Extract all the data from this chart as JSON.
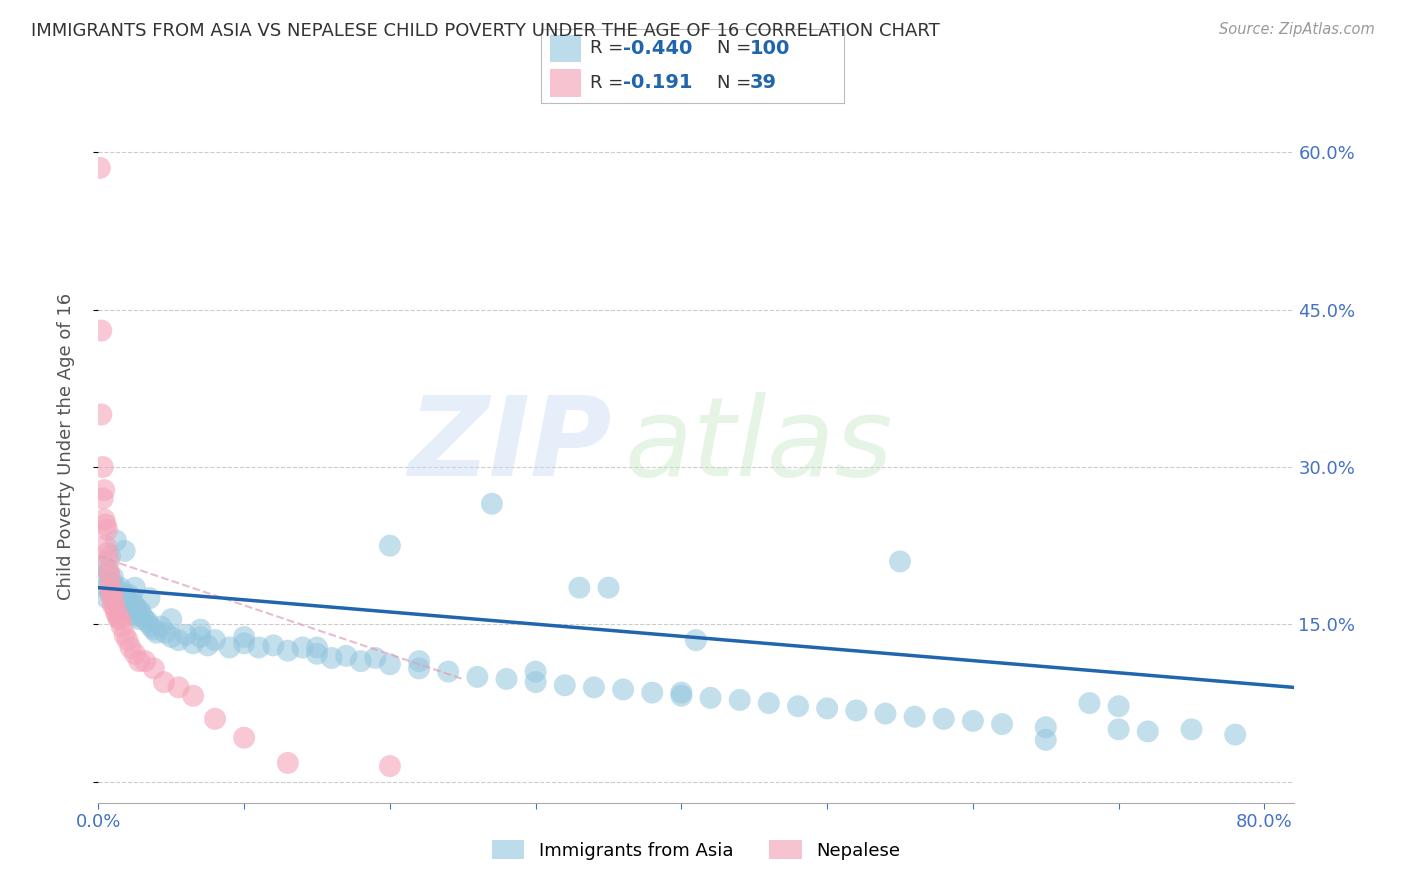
{
  "title": "IMMIGRANTS FROM ASIA VS NEPALESE CHILD POVERTY UNDER THE AGE OF 16 CORRELATION CHART",
  "source": "Source: ZipAtlas.com",
  "ylabel": "Child Poverty Under the Age of 16",
  "xlim": [
    0.0,
    0.82
  ],
  "ylim": [
    -0.02,
    0.66
  ],
  "legend_label1": "Immigrants from Asia",
  "legend_label2": "Nepalese",
  "blue_color": "#92c5de",
  "pink_color": "#f4a4b8",
  "blue_line_color": "#2166ac",
  "pink_line_color": "#d4a0b0",
  "background_color": "#ffffff",
  "grid_color": "#cccccc",
  "title_color": "#333333",
  "axis_label_color": "#555555",
  "right_tick_color": "#4472c4",
  "bottom_tick_color": "#4472c4",
  "watermark_zip": "ZIP",
  "watermark_atlas": "atlas",
  "blue_scatter_x": [
    0.002,
    0.004,
    0.005,
    0.006,
    0.007,
    0.008,
    0.009,
    0.01,
    0.011,
    0.012,
    0.013,
    0.014,
    0.015,
    0.016,
    0.017,
    0.018,
    0.019,
    0.02,
    0.021,
    0.022,
    0.023,
    0.024,
    0.025,
    0.026,
    0.027,
    0.028,
    0.029,
    0.03,
    0.032,
    0.034,
    0.036,
    0.038,
    0.04,
    0.043,
    0.046,
    0.05,
    0.055,
    0.06,
    0.065,
    0.07,
    0.075,
    0.08,
    0.09,
    0.1,
    0.11,
    0.12,
    0.13,
    0.14,
    0.15,
    0.16,
    0.17,
    0.18,
    0.19,
    0.2,
    0.22,
    0.24,
    0.26,
    0.28,
    0.3,
    0.32,
    0.34,
    0.36,
    0.38,
    0.4,
    0.42,
    0.44,
    0.46,
    0.48,
    0.5,
    0.52,
    0.54,
    0.56,
    0.58,
    0.6,
    0.62,
    0.65,
    0.68,
    0.7,
    0.72,
    0.75,
    0.78,
    0.008,
    0.012,
    0.018,
    0.025,
    0.035,
    0.05,
    0.07,
    0.1,
    0.15,
    0.22,
    0.3,
    0.4,
    0.27,
    0.35,
    0.33,
    0.2,
    0.55,
    0.41,
    0.65,
    0.7
  ],
  "blue_scatter_y": [
    0.195,
    0.205,
    0.185,
    0.175,
    0.2,
    0.18,
    0.19,
    0.195,
    0.175,
    0.185,
    0.17,
    0.178,
    0.185,
    0.172,
    0.18,
    0.168,
    0.175,
    0.17,
    0.178,
    0.165,
    0.175,
    0.16,
    0.168,
    0.158,
    0.165,
    0.155,
    0.162,
    0.158,
    0.155,
    0.152,
    0.148,
    0.145,
    0.142,
    0.148,
    0.142,
    0.138,
    0.135,
    0.14,
    0.132,
    0.138,
    0.13,
    0.135,
    0.128,
    0.132,
    0.128,
    0.13,
    0.125,
    0.128,
    0.122,
    0.118,
    0.12,
    0.115,
    0.118,
    0.112,
    0.108,
    0.105,
    0.1,
    0.098,
    0.095,
    0.092,
    0.09,
    0.088,
    0.085,
    0.082,
    0.08,
    0.078,
    0.075,
    0.072,
    0.07,
    0.068,
    0.065,
    0.062,
    0.06,
    0.058,
    0.055,
    0.052,
    0.075,
    0.05,
    0.048,
    0.05,
    0.045,
    0.215,
    0.23,
    0.22,
    0.185,
    0.175,
    0.155,
    0.145,
    0.138,
    0.128,
    0.115,
    0.105,
    0.085,
    0.265,
    0.185,
    0.185,
    0.225,
    0.21,
    0.135,
    0.04,
    0.072
  ],
  "pink_scatter_x": [
    0.001,
    0.002,
    0.002,
    0.003,
    0.003,
    0.004,
    0.004,
    0.005,
    0.005,
    0.006,
    0.006,
    0.007,
    0.007,
    0.008,
    0.008,
    0.009,
    0.009,
    0.01,
    0.01,
    0.011,
    0.012,
    0.013,
    0.014,
    0.015,
    0.016,
    0.018,
    0.02,
    0.022,
    0.025,
    0.028,
    0.032,
    0.038,
    0.045,
    0.055,
    0.065,
    0.08,
    0.1,
    0.13,
    0.2
  ],
  "pink_scatter_y": [
    0.585,
    0.43,
    0.35,
    0.3,
    0.27,
    0.278,
    0.25,
    0.245,
    0.225,
    0.24,
    0.218,
    0.21,
    0.2,
    0.195,
    0.185,
    0.182,
    0.175,
    0.178,
    0.168,
    0.168,
    0.162,
    0.158,
    0.155,
    0.155,
    0.148,
    0.14,
    0.135,
    0.128,
    0.122,
    0.115,
    0.115,
    0.108,
    0.095,
    0.09,
    0.082,
    0.06,
    0.042,
    0.018,
    0.015
  ]
}
